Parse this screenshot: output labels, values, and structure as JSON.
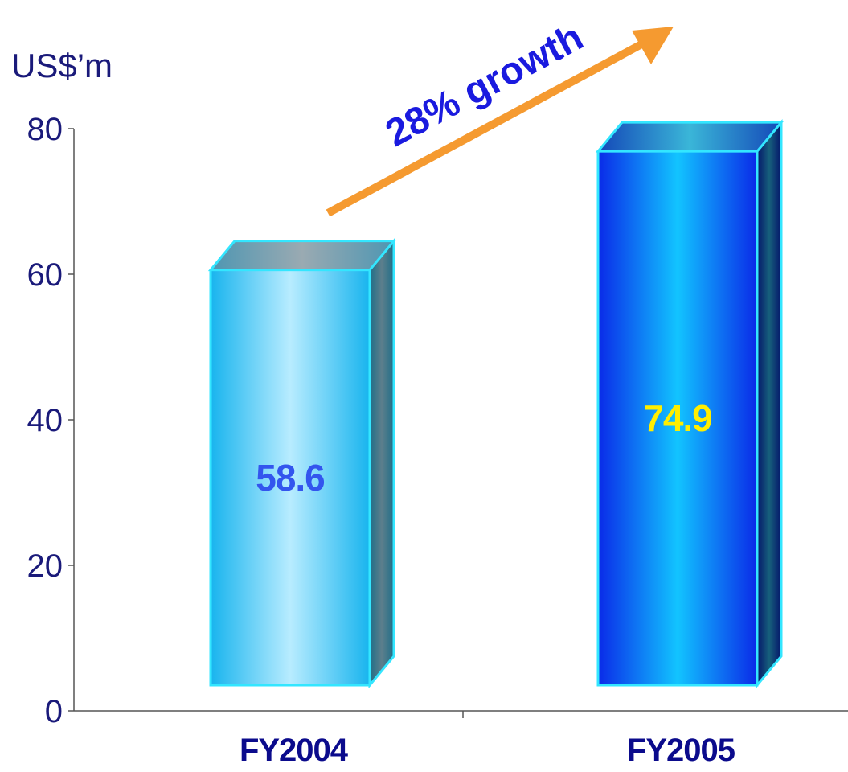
{
  "chart_data": {
    "type": "bar",
    "ylabel": "US$’m",
    "categories": [
      "FY2004",
      "FY2005"
    ],
    "values": [
      58.6,
      74.9
    ],
    "data_labels": [
      "58.6",
      "74.9"
    ],
    "ylim": [
      0,
      80
    ],
    "y_ticks": [
      "0",
      "20",
      "40",
      "60",
      "80"
    ],
    "annotation": "28% growth",
    "colors": {
      "fy2004_bar": "#22ccff",
      "fy2005_bar": "#1133ee",
      "fy2004_label": "#3355ee",
      "fy2005_label": "#ffee00",
      "arrow": "#f59a30",
      "axis": "#555555"
    }
  }
}
